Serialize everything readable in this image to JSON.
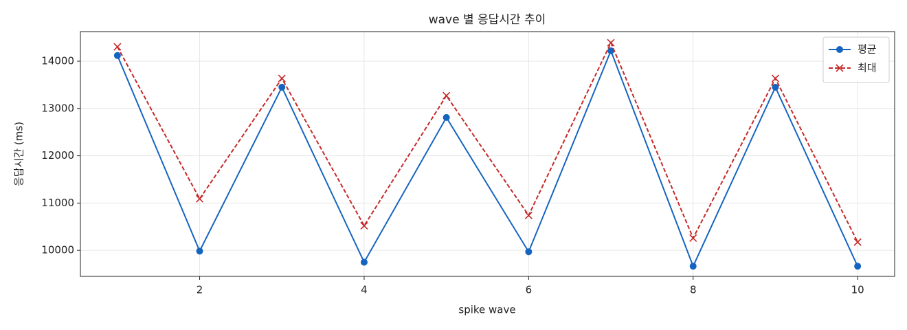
{
  "chart_data": {
    "type": "line",
    "title": "wave 별 응답시간 추이",
    "x_label": "spike wave",
    "y_label": "응답시간 (ms)",
    "x": [
      1,
      2,
      3,
      4,
      5,
      6,
      7,
      8,
      9,
      10
    ],
    "series": [
      {
        "name": "평균",
        "color": "#1565c0",
        "marker": "circle",
        "linestyle": "solid",
        "values": [
          14120,
          9985,
          13450,
          9750,
          12810,
          9970,
          14220,
          9665,
          13450,
          9665
        ]
      },
      {
        "name": "최대",
        "color": "#c62828",
        "marker": "x",
        "linestyle": "dashed",
        "values": [
          14305,
          11090,
          13635,
          10520,
          13270,
          10740,
          14390,
          10260,
          13635,
          10175
        ]
      }
    ],
    "xlim": [
      0.55,
      10.45
    ],
    "xticks": [
      2,
      4,
      6,
      8,
      10
    ],
    "ylim": [
      9450,
      14625
    ],
    "yticks": [
      10000,
      11000,
      12000,
      13000,
      14000
    ],
    "grid": true,
    "legend": "upper right"
  }
}
